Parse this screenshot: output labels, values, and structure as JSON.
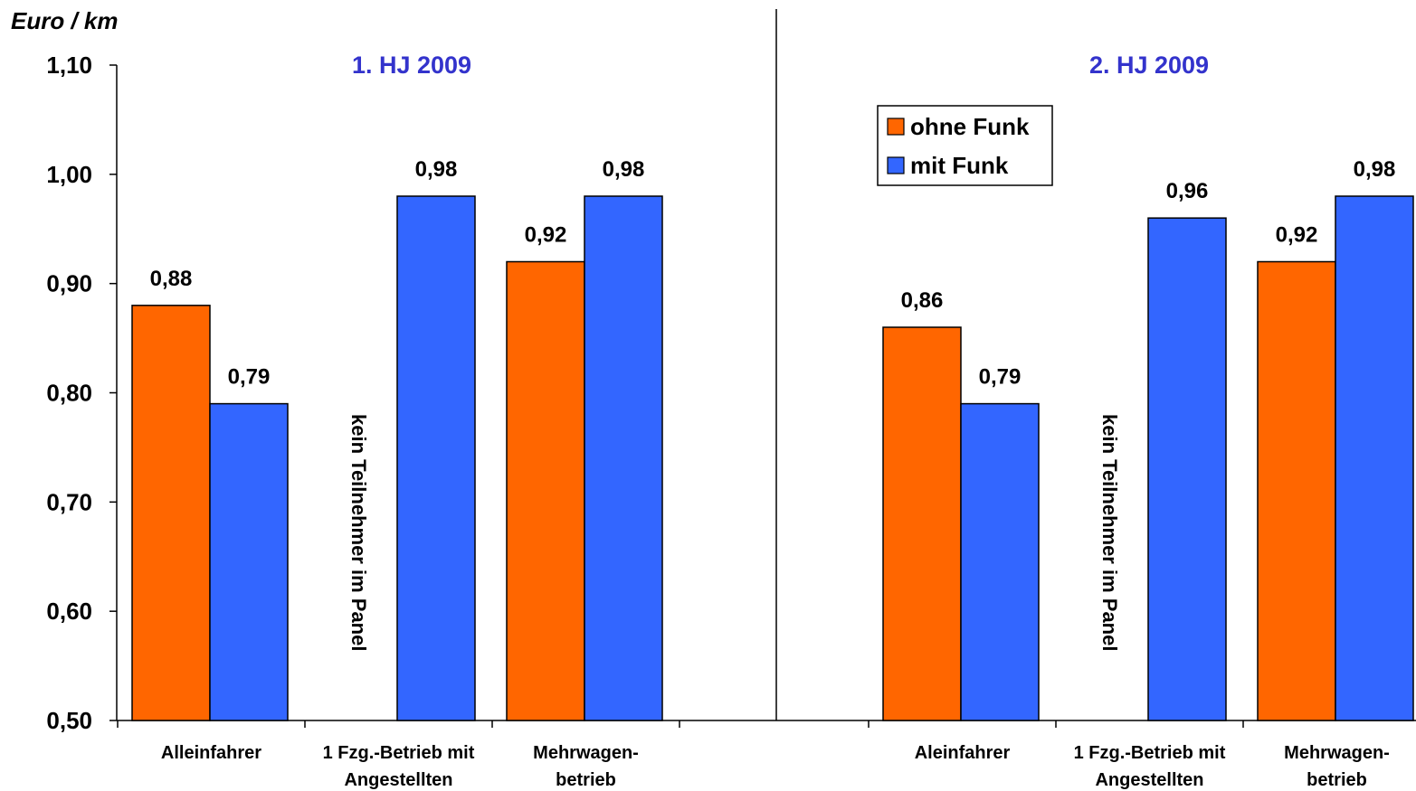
{
  "chart_data": {
    "type": "bar",
    "ylabel": "Euro / km",
    "ylim": [
      0.5,
      1.1
    ],
    "yticks": [
      "0,50",
      "0,60",
      "0,70",
      "0,80",
      "0,90",
      "1,00",
      "1,10"
    ],
    "ytick_values": [
      0.5,
      0.6,
      0.7,
      0.8,
      0.9,
      1.0,
      1.1
    ],
    "legend": {
      "placement": "top-center",
      "entries": [
        {
          "name": "ohne Funk",
          "color": "#FF6600"
        },
        {
          "name": "mit Funk",
          "color": "#3366FF"
        }
      ]
    },
    "panels": [
      {
        "title": "1. HJ 2009",
        "categories": [
          {
            "label_lines": [
              "Alleinfahrer"
            ]
          },
          {
            "label_lines": [
              "1 Fzg.-Betrieb mit",
              "Angestellten"
            ],
            "note": "kein Teilnehmer im Panel"
          },
          {
            "label_lines": [
              "Mehrwagen-",
              "betrieb"
            ]
          }
        ],
        "series": [
          {
            "name": "ohne Funk",
            "values": [
              0.88,
              null,
              0.92
            ],
            "labels": [
              "0,88",
              "",
              "0,92"
            ]
          },
          {
            "name": "mit Funk",
            "values": [
              0.79,
              0.98,
              0.98
            ],
            "labels": [
              "0,79",
              "0,98",
              "0,98"
            ]
          }
        ]
      },
      {
        "title": "2. HJ 2009",
        "categories": [
          {
            "label_lines": [
              "Aleinfahrer"
            ]
          },
          {
            "label_lines": [
              "1 Fzg.-Betrieb mit",
              "Angestellten"
            ],
            "note": "kein Teilnehmer im Panel"
          },
          {
            "label_lines": [
              "Mehrwagen-",
              "betrieb"
            ]
          }
        ],
        "series": [
          {
            "name": "ohne Funk",
            "values": [
              0.86,
              null,
              0.92
            ],
            "labels": [
              "0,86",
              "",
              "0,92"
            ]
          },
          {
            "name": "mit Funk",
            "values": [
              0.79,
              0.96,
              0.98
            ],
            "labels": [
              "0,79",
              "0,96",
              "0,98"
            ]
          }
        ]
      }
    ],
    "title_color": "#3333CC",
    "grid": false
  }
}
